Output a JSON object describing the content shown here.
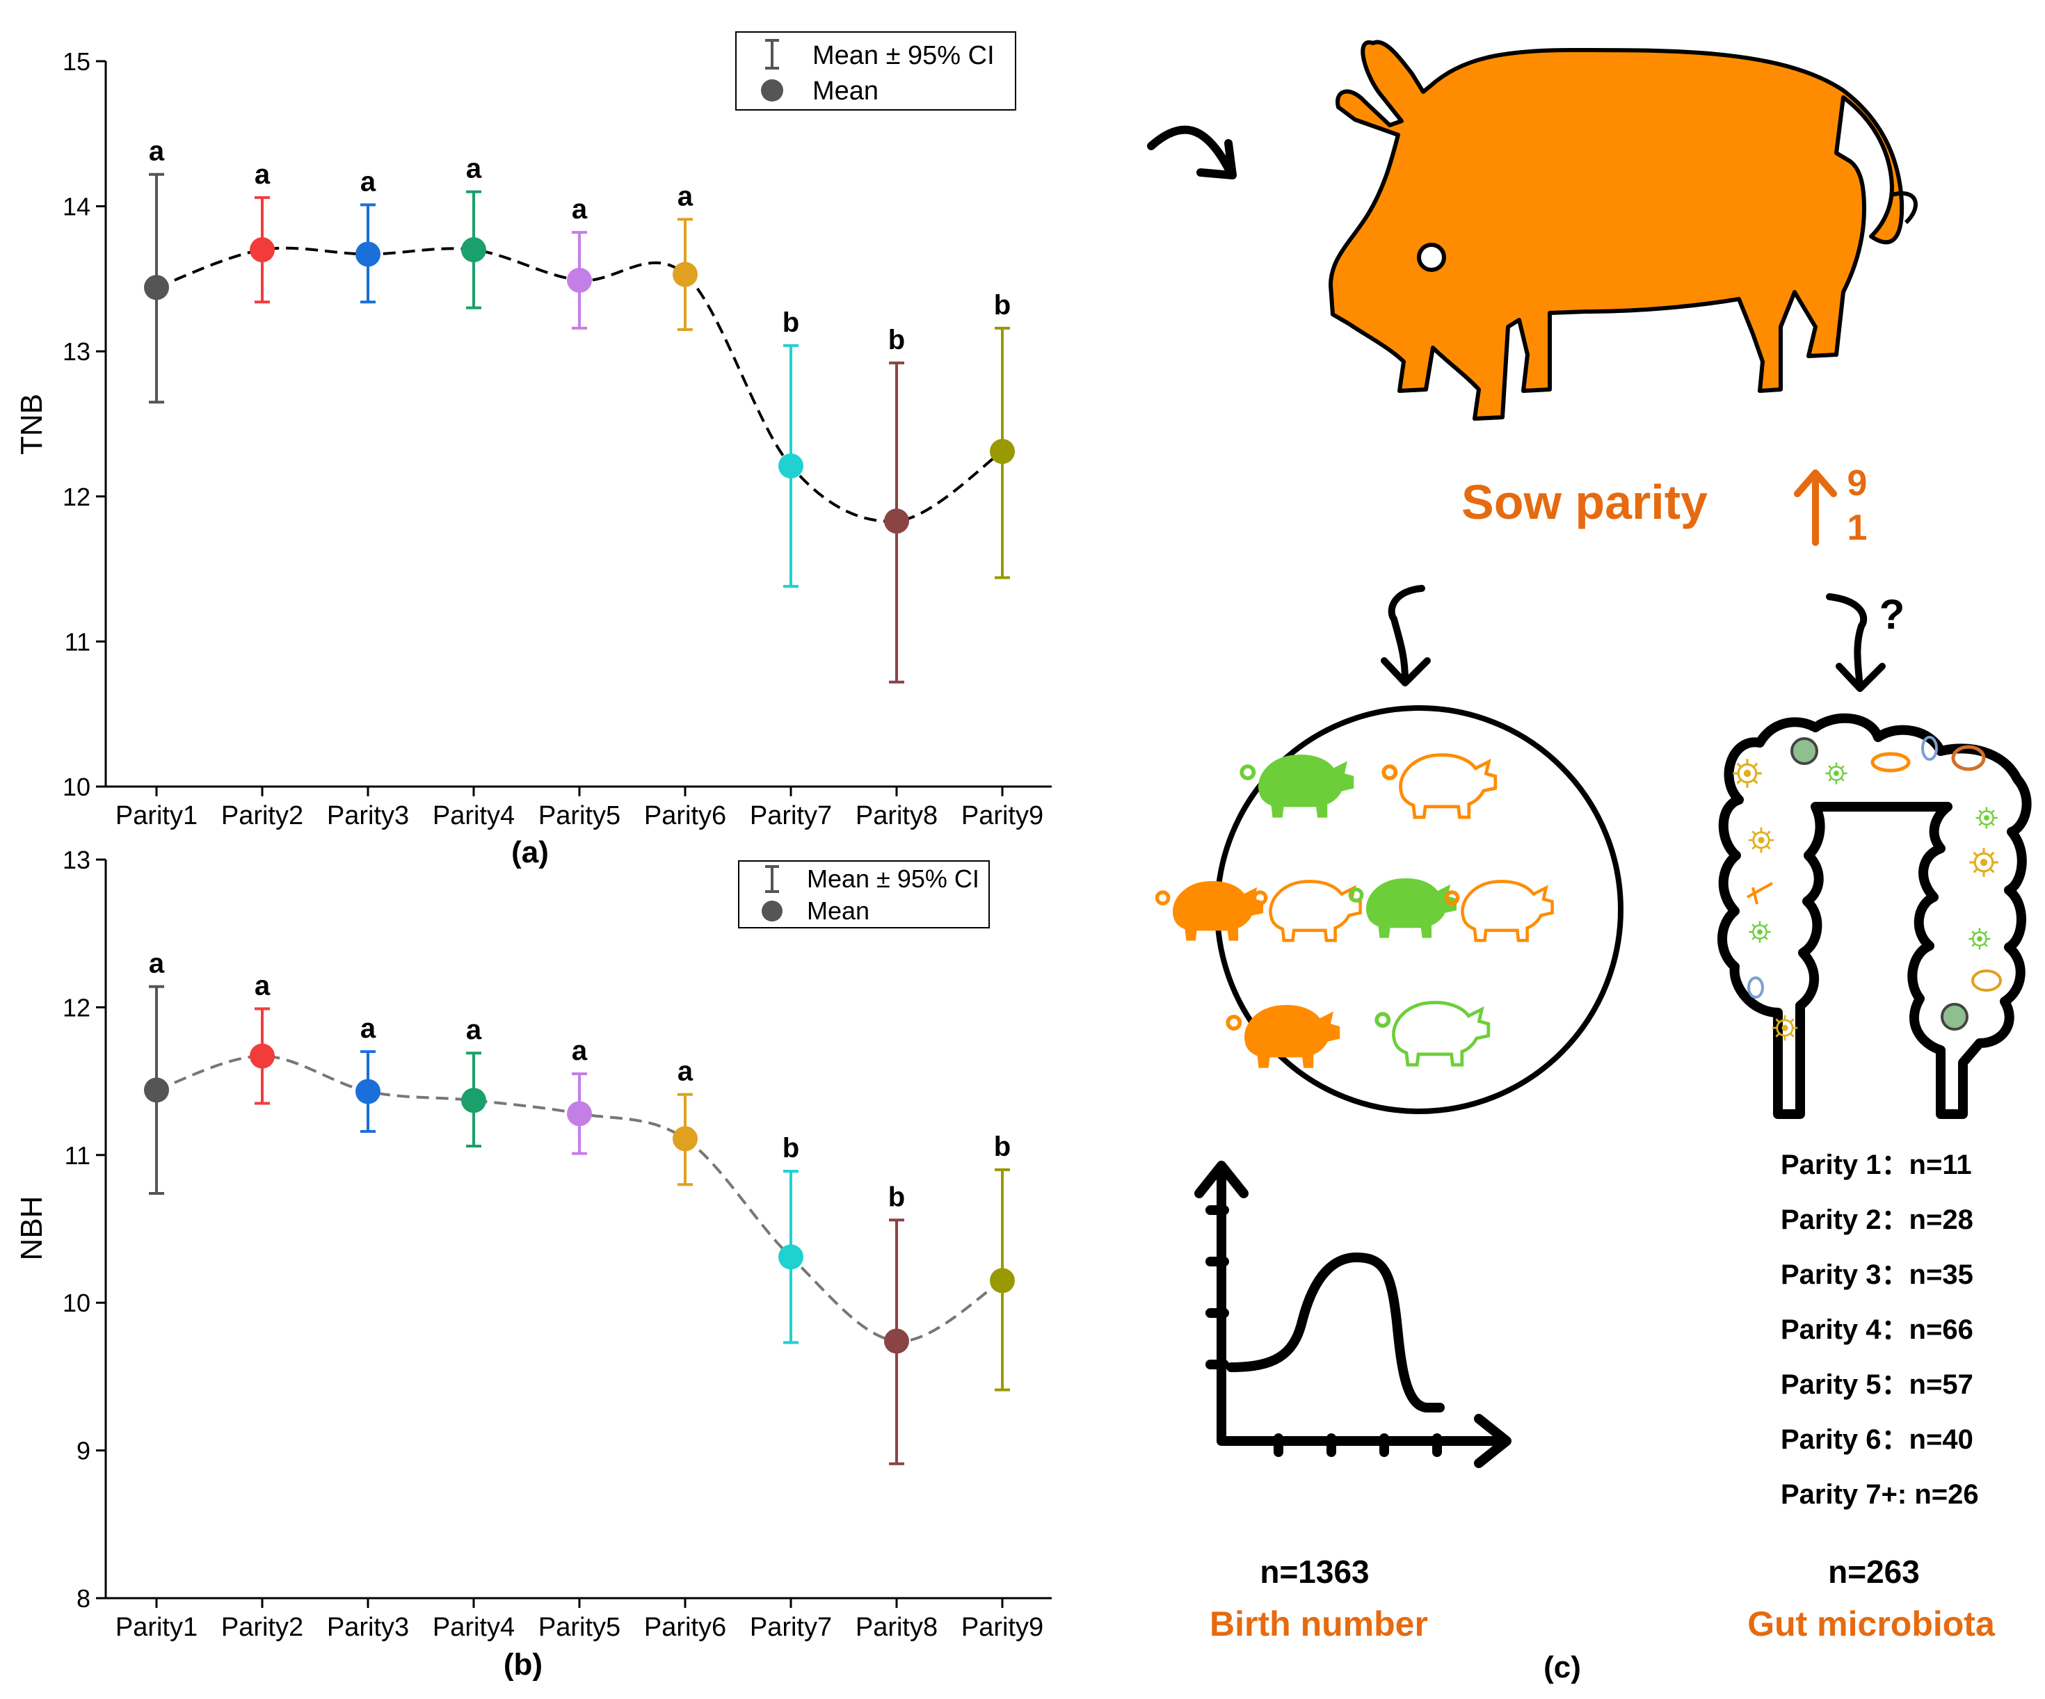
{
  "chart_data": [
    {
      "type": "scatter",
      "panel": "(a)",
      "ylabel": "TNB",
      "xlabel": "",
      "ylim": [
        10,
        15
      ],
      "yticks": [
        10,
        11,
        12,
        13,
        14,
        15
      ],
      "categories": [
        "Parity1",
        "Parity2",
        "Parity3",
        "Parity4",
        "Parity5",
        "Parity6",
        "Parity7",
        "Parity8",
        "Parity9"
      ],
      "means": [
        13.44,
        13.7,
        13.67,
        13.7,
        13.49,
        13.53,
        12.21,
        11.83,
        12.31
      ],
      "ci_low": [
        12.65,
        13.34,
        13.34,
        13.3,
        13.16,
        13.15,
        11.38,
        10.72,
        11.44
      ],
      "ci_high": [
        14.22,
        14.06,
        14.01,
        14.1,
        13.82,
        13.91,
        13.04,
        12.92,
        13.16
      ],
      "letters": [
        "a",
        "a",
        "a",
        "a",
        "a",
        "a",
        "b",
        "b",
        "b"
      ],
      "trend_style": "black dashed",
      "legend": {
        "ci_label": "Mean ± 95% CI",
        "mean_label": "Mean",
        "position": "top-right"
      }
    },
    {
      "type": "scatter",
      "panel": "(b)",
      "ylabel": "NBH",
      "xlabel": "",
      "ylim": [
        8,
        13
      ],
      "yticks": [
        8,
        9,
        10,
        11,
        12,
        13
      ],
      "categories": [
        "Parity1",
        "Parity2",
        "Parity3",
        "Parity4",
        "Parity5",
        "Parity6",
        "Parity7",
        "Parity8",
        "Parity9"
      ],
      "means": [
        11.44,
        11.67,
        11.43,
        11.37,
        11.28,
        11.11,
        10.31,
        9.74,
        10.15
      ],
      "ci_low": [
        10.74,
        11.35,
        11.16,
        11.06,
        11.01,
        10.8,
        9.73,
        8.91,
        9.41
      ],
      "ci_high": [
        12.14,
        11.99,
        11.7,
        11.69,
        11.55,
        11.41,
        10.89,
        10.56,
        10.9
      ],
      "letters": [
        "a",
        "a",
        "a",
        "a",
        "a",
        "a",
        "b",
        "b",
        "b"
      ],
      "trend_style": "grey dashed",
      "legend": {
        "ci_label": "Mean ± 95% CI",
        "mean_label": "Mean",
        "position": "top-right"
      }
    }
  ],
  "series_colors": [
    "#555555",
    "#f23c3c",
    "#1a6fd9",
    "#1aa06a",
    "#c47fe6",
    "#e0a020",
    "#1fd1d1",
    "#8b4444",
    "#999900"
  ],
  "diagram": {
    "label": "(c)",
    "sow_parity": "Sow parity",
    "parity_range_top": "9",
    "parity_range_bottom": "1",
    "question_mark": "?",
    "accent_color": "#e56a10",
    "pig_color": "#ff8c00",
    "green_color": "#6ccf3a",
    "left": {
      "n": "n=1363",
      "title": "Birth number"
    },
    "right": {
      "n": "n=263",
      "title": "Gut microbiota"
    },
    "parity_counts": [
      "Parity 1：n=11",
      "Parity 2：n=28",
      "Parity 3：n=35",
      "Parity 4：n=66",
      "Parity 5：n=57",
      "Parity 6：n=40",
      "Parity 7+: n=26"
    ]
  }
}
